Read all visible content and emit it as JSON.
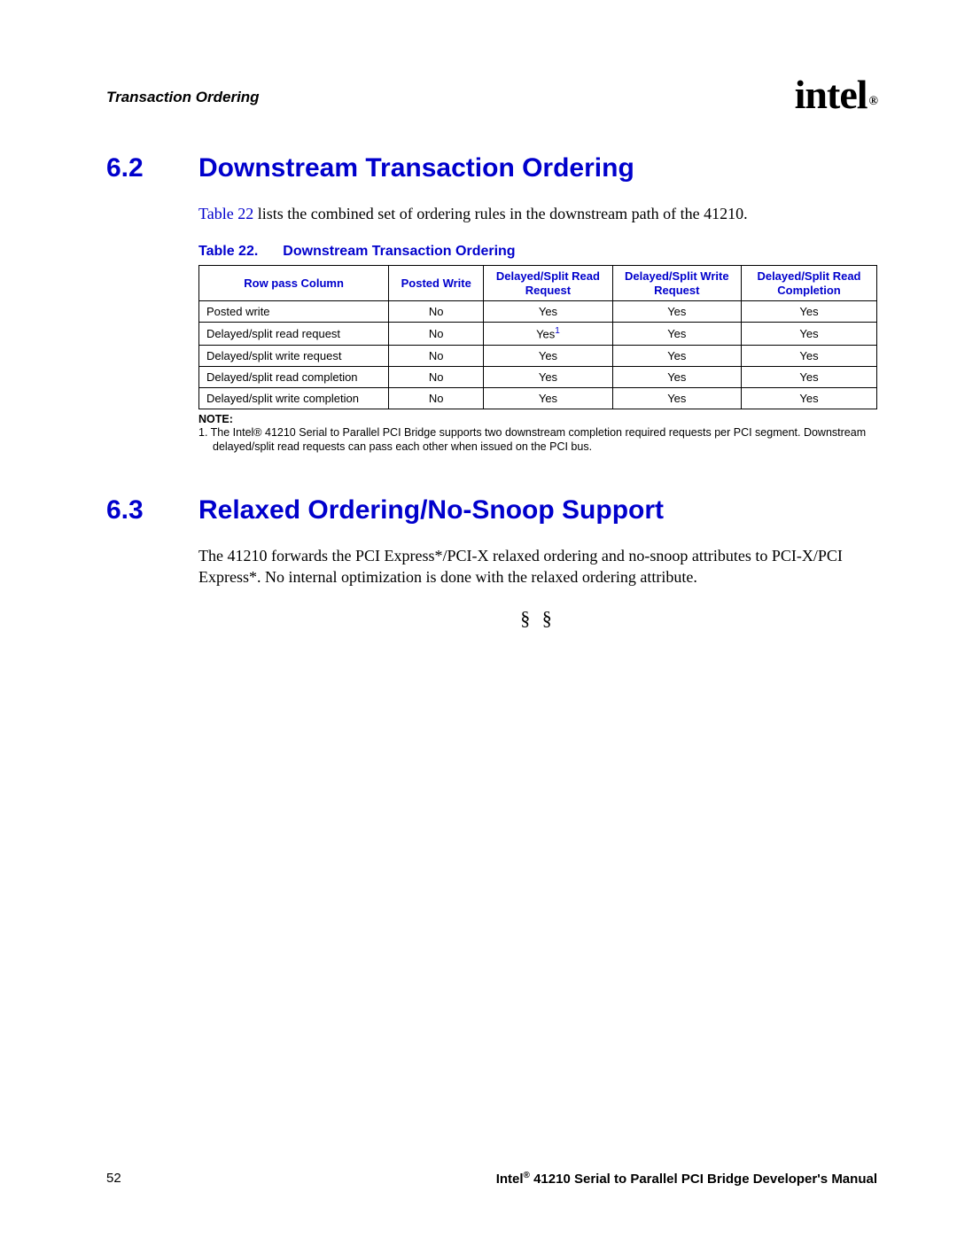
{
  "header": {
    "label": "Transaction Ordering",
    "logo_text": "intel",
    "logo_reg": "®"
  },
  "section62": {
    "num": "6.2",
    "title": "Downstream Transaction Ordering",
    "intro_pre": "",
    "intro_link": "Table 22",
    "intro_post": " lists the combined set of ordering rules in the downstream path of the 41210."
  },
  "table22": {
    "caption_label": "Table 22.",
    "caption_title": "Downstream Transaction Ordering",
    "columns": [
      "Row pass Column",
      "Posted Write",
      "Delayed/Split Read Request",
      "Delayed/Split Write Request",
      "Delayed/Split Read Completion"
    ],
    "rows": [
      {
        "label": "Posted write",
        "c": [
          "No",
          "Yes",
          "Yes",
          "Yes"
        ],
        "sup": [
          0,
          0,
          0,
          0
        ]
      },
      {
        "label": "Delayed/split read request",
        "c": [
          "No",
          "Yes",
          "Yes",
          "Yes"
        ],
        "sup": [
          0,
          1,
          0,
          0
        ]
      },
      {
        "label": "Delayed/split write request",
        "c": [
          "No",
          "Yes",
          "Yes",
          "Yes"
        ],
        "sup": [
          0,
          0,
          0,
          0
        ]
      },
      {
        "label": "Delayed/split read completion",
        "c": [
          "No",
          "Yes",
          "Yes",
          "Yes"
        ],
        "sup": [
          0,
          0,
          0,
          0
        ]
      },
      {
        "label": "Delayed/split write completion",
        "c": [
          "No",
          "Yes",
          "Yes",
          "Yes"
        ],
        "sup": [
          0,
          0,
          0,
          0
        ]
      }
    ],
    "note_label": "NOTE:",
    "note_text": "1. The Intel® 41210 Serial to Parallel PCI Bridge supports two downstream completion required requests per PCI segment. Downstream delayed/split read requests can pass each other when issued on the PCI bus."
  },
  "section63": {
    "num": "6.3",
    "title": "Relaxed Ordering/No-Snoop Support",
    "body": "The 41210 forwards the PCI Express*/PCI-X relaxed ordering and no-snoop attributes to PCI-X/PCI Express*. No internal optimization is done with the relaxed ordering attribute."
  },
  "section_end": "§ §",
  "footer": {
    "page": "52",
    "manual_pre": "Intel",
    "manual_reg": "®",
    "manual_post": " 41210 Serial to Parallel PCI Bridge Developer's Manual"
  },
  "col_widths": [
    "28%",
    "14%",
    "19%",
    "19%",
    "20%"
  ]
}
